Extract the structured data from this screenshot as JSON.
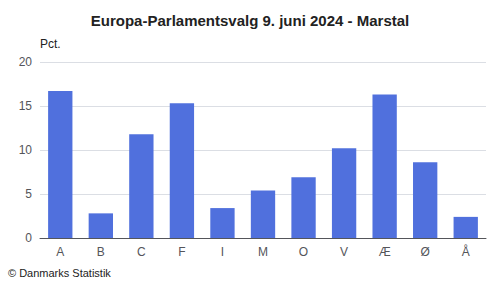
{
  "chart_data": {
    "type": "bar",
    "title": "Europa-Parlamentsvalg 9. juni 2024 - Marstal",
    "categories": [
      "A",
      "B",
      "C",
      "F",
      "I",
      "M",
      "O",
      "V",
      "Æ",
      "Ø",
      "Å"
    ],
    "values": [
      16.7,
      2.8,
      11.8,
      15.3,
      3.4,
      5.4,
      6.9,
      10.2,
      16.3,
      8.6,
      2.4
    ],
    "ylabel": "Pct.",
    "footer": "© Danmarks Statistik",
    "ylim": [
      0,
      20
    ],
    "yticks": [
      0,
      5,
      10,
      15,
      20
    ],
    "grid": true
  }
}
